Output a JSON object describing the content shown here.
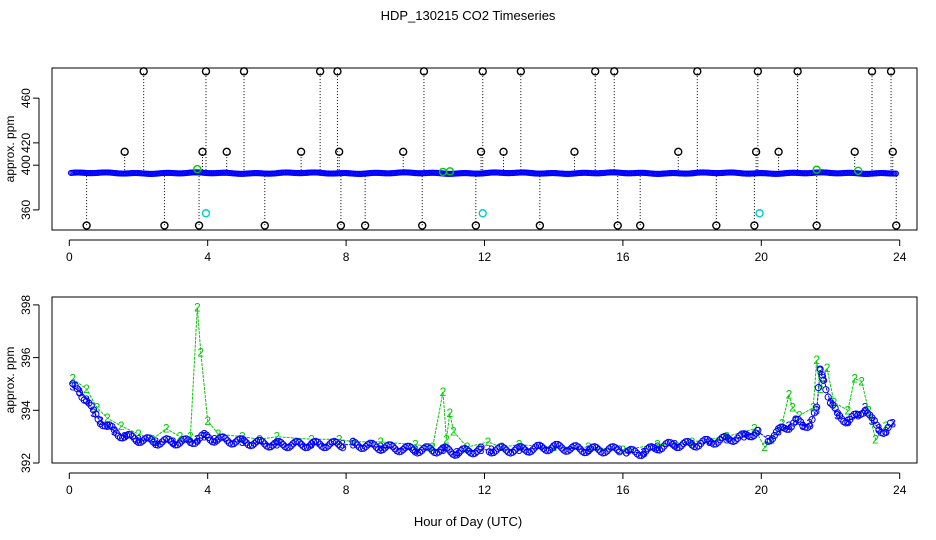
{
  "title": "HDP_130215  CO2 Timeseries",
  "xlabel": "Hour of Day (UTC)",
  "colors": {
    "blue": "#0000ff",
    "green": "#00cc00",
    "black": "#000000",
    "cyan": "#00cccc"
  },
  "chart_data": [
    {
      "type": "scatter",
      "title": "",
      "xlabel": "",
      "ylabel": "approx. ppm",
      "xlim": [
        -0.5,
        24.5
      ],
      "ylim": [
        342,
        487
      ],
      "xticks": [
        0,
        4,
        8,
        12,
        16,
        20,
        24
      ],
      "yticks": [
        360,
        400,
        420,
        460
      ],
      "ytick_labels": [
        "360",
        "400",
        "420",
        "460"
      ],
      "baseline_series": {
        "name": "",
        "color": "#0000ff",
        "x_start": 0.05,
        "x_end": 23.9,
        "y": 392.9
      },
      "series": [
        {
          "name": "",
          "marker": "circle",
          "color": "#000000",
          "points": [
            [
              0.5,
              346
            ],
            [
              1.6,
              412
            ],
            [
              2.15,
              484
            ],
            [
              2.75,
              346
            ],
            [
              3.75,
              346
            ],
            [
              3.85,
              412
            ],
            [
              3.95,
              484
            ],
            [
              4.55,
              412
            ],
            [
              5.05,
              484
            ],
            [
              5.65,
              346
            ],
            [
              6.7,
              412
            ],
            [
              7.25,
              484
            ],
            [
              7.75,
              484
            ],
            [
              7.8,
              412
            ],
            [
              7.85,
              346
            ],
            [
              8.55,
              346
            ],
            [
              9.65,
              412
            ],
            [
              10.2,
              346
            ],
            [
              10.25,
              484
            ],
            [
              11.75,
              346
            ],
            [
              11.9,
              412
            ],
            [
              11.95,
              484
            ],
            [
              12.55,
              412
            ],
            [
              13.05,
              484
            ],
            [
              13.6,
              346
            ],
            [
              14.6,
              412
            ],
            [
              15.2,
              484
            ],
            [
              15.75,
              484
            ],
            [
              15.85,
              346
            ],
            [
              16.5,
              346
            ],
            [
              17.6,
              412
            ],
            [
              18.15,
              484
            ],
            [
              18.7,
              346
            ],
            [
              19.8,
              346
            ],
            [
              19.85,
              412
            ],
            [
              19.9,
              484
            ],
            [
              20.5,
              412
            ],
            [
              21.05,
              484
            ],
            [
              21.6,
              346
            ],
            [
              22.7,
              412
            ],
            [
              23.2,
              484
            ],
            [
              23.75,
              484
            ],
            [
              23.8,
              412
            ],
            [
              23.9,
              346
            ]
          ]
        },
        {
          "name": "",
          "marker": "circle",
          "color": "#00cccc",
          "points": [
            [
              3.95,
              357
            ],
            [
              11.95,
              357
            ],
            [
              19.95,
              357
            ]
          ]
        },
        {
          "name": "",
          "marker": "circle",
          "color": "#00cc00",
          "points": [
            [
              3.7,
              396.5
            ],
            [
              10.8,
              394
            ],
            [
              11.0,
              394.5
            ],
            [
              21.6,
              396
            ],
            [
              22.8,
              395
            ]
          ]
        }
      ]
    },
    {
      "type": "scatter",
      "title": "",
      "xlabel": "Hour of Day (UTC)",
      "ylabel": "approx. ppm",
      "xlim": [
        -0.5,
        24.5
      ],
      "ylim": [
        392,
        398.3
      ],
      "xticks": [
        0,
        4,
        8,
        12,
        16,
        20,
        24
      ],
      "yticks": [
        392,
        394,
        396,
        398
      ],
      "series": [
        {
          "name": "",
          "color": "#0000ff",
          "marker_text": "3",
          "points": [
            [
              0.1,
              394.9
            ],
            [
              0.3,
              394.7
            ],
            [
              0.5,
              394.4
            ],
            [
              0.7,
              393.9
            ],
            [
              0.9,
              393.6
            ],
            [
              1.1,
              393.4
            ],
            [
              1.3,
              393.2
            ],
            [
              1.6,
              393.0
            ],
            [
              2.0,
              392.9
            ],
            [
              2.5,
              392.8
            ],
            [
              3.0,
              392.8
            ],
            [
              3.5,
              392.8
            ],
            [
              3.7,
              392.9
            ],
            [
              3.9,
              393.0
            ],
            [
              4.2,
              392.9
            ],
            [
              5.0,
              392.8
            ],
            [
              6.0,
              392.7
            ],
            [
              7.0,
              392.7
            ],
            [
              7.9,
              392.7
            ],
            [
              8.2,
              392.7
            ],
            [
              9.0,
              392.6
            ],
            [
              10.0,
              392.5
            ],
            [
              10.8,
              392.5
            ],
            [
              11.2,
              392.4
            ],
            [
              11.9,
              392.5
            ],
            [
              12.2,
              392.5
            ],
            [
              13.0,
              392.5
            ],
            [
              14.0,
              392.6
            ],
            [
              15.0,
              392.5
            ],
            [
              15.9,
              392.5
            ],
            [
              16.1,
              392.4
            ],
            [
              16.6,
              392.4
            ],
            [
              17.0,
              392.6
            ],
            [
              17.5,
              392.7
            ],
            [
              18.0,
              392.7
            ],
            [
              18.5,
              392.8
            ],
            [
              19.0,
              392.9
            ],
            [
              19.5,
              393.0
            ],
            [
              19.9,
              393.2
            ],
            [
              20.2,
              392.9
            ],
            [
              20.5,
              393.2
            ],
            [
              20.8,
              393.4
            ],
            [
              21.0,
              393.6
            ],
            [
              21.2,
              393.4
            ],
            [
              21.4,
              393.5
            ],
            [
              21.6,
              394.0
            ],
            [
              21.7,
              395.5
            ],
            [
              21.8,
              395.2
            ],
            [
              22.0,
              394.3
            ],
            [
              22.2,
              393.8
            ],
            [
              22.5,
              393.6
            ],
            [
              22.8,
              393.8
            ],
            [
              23.0,
              394.1
            ],
            [
              23.2,
              393.6
            ],
            [
              23.4,
              393.3
            ],
            [
              23.6,
              393.2
            ],
            [
              23.8,
              393.5
            ]
          ]
        },
        {
          "name": "",
          "color": "#00cc00",
          "marker_text": "2",
          "points": [
            [
              0.1,
              395.2
            ],
            [
              0.5,
              394.8
            ],
            [
              0.8,
              394.1
            ],
            [
              1.1,
              393.7
            ],
            [
              1.5,
              393.4
            ],
            [
              2.0,
              393.1
            ],
            [
              2.4,
              392.9
            ],
            [
              2.8,
              393.3
            ],
            [
              3.2,
              393.0
            ],
            [
              3.5,
              393.0
            ],
            [
              3.7,
              397.9
            ],
            [
              3.8,
              396.2
            ],
            [
              4.0,
              393.6
            ],
            [
              4.3,
              393.1
            ],
            [
              5.0,
              393.0
            ],
            [
              5.5,
              392.9
            ],
            [
              6.0,
              393.0
            ],
            [
              7.0,
              392.9
            ],
            [
              7.8,
              392.9
            ],
            [
              8.2,
              392.8
            ],
            [
              9.0,
              392.8
            ],
            [
              10.0,
              392.7
            ],
            [
              10.5,
              392.6
            ],
            [
              10.8,
              394.7
            ],
            [
              10.9,
              392.9
            ],
            [
              11.0,
              393.9
            ],
            [
              11.1,
              393.2
            ],
            [
              11.5,
              392.6
            ],
            [
              12.1,
              392.8
            ],
            [
              12.5,
              392.6
            ],
            [
              13.0,
              392.7
            ],
            [
              14.0,
              392.6
            ],
            [
              15.0,
              392.6
            ],
            [
              16.0,
              392.5
            ],
            [
              17.0,
              392.7
            ],
            [
              18.0,
              392.8
            ],
            [
              19.0,
              393.0
            ],
            [
              19.8,
              393.3
            ],
            [
              20.1,
              392.6
            ],
            [
              20.3,
              392.9
            ],
            [
              20.6,
              393.5
            ],
            [
              20.8,
              394.6
            ],
            [
              20.9,
              394.1
            ],
            [
              21.1,
              393.8
            ],
            [
              21.5,
              394.1
            ],
            [
              21.6,
              395.9
            ],
            [
              21.7,
              394.8
            ],
            [
              21.9,
              395.6
            ],
            [
              22.1,
              394.3
            ],
            [
              22.5,
              394.0
            ],
            [
              22.7,
              395.2
            ],
            [
              22.9,
              395.1
            ],
            [
              23.1,
              394.0
            ],
            [
              23.3,
              392.9
            ],
            [
              23.6,
              393.4
            ]
          ]
        }
      ]
    }
  ]
}
